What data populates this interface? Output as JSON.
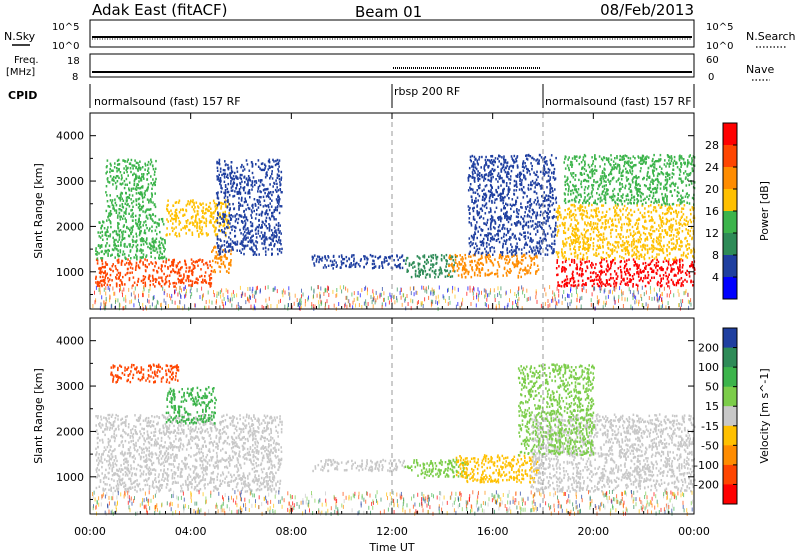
{
  "header": {
    "site": "Adak East (fitACF)",
    "beam": "Beam 01",
    "date": "08/Feb/2013"
  },
  "top_panels": {
    "nsky_label": "N.Sky",
    "nsearch_label": "N.Search",
    "left_ticks": [
      "10^5",
      "10^0"
    ],
    "right_ticks": [
      "10^5",
      "10^0"
    ],
    "freq_label_1": "Freq.",
    "freq_label_2": "[MHz]",
    "freq_ticks": [
      "18",
      "8"
    ],
    "nave_label": "Nave",
    "nave_ticks": [
      "60",
      "0"
    ],
    "cpid_label": "CPID",
    "cpid_segments": [
      {
        "label": "normalsound (fast) 157 RF",
        "start": 0,
        "end": 12
      },
      {
        "label": "rbsp 200 RF",
        "start": 12,
        "end": 18
      },
      {
        "label": "normalsound (fast) 157 RF",
        "start": 18,
        "end": 24
      }
    ]
  },
  "chart_data": [
    {
      "type": "heatmap",
      "name": "power-panel",
      "xlabel": "Time UT",
      "ylabel": "Slant Range [km]",
      "xlim": [
        0,
        24
      ],
      "ylim": [
        180,
        4500
      ],
      "x_ticks": [
        "00:00",
        "04:00",
        "08:00",
        "12:00",
        "16:00",
        "20:00",
        "00:00"
      ],
      "x_tick_values": [
        0,
        4,
        8,
        12,
        16,
        20,
        24
      ],
      "y_ticks": [
        1000,
        2000,
        3000,
        4000
      ],
      "colorbar": {
        "label": "Power [dB]",
        "ticks": [
          "28",
          "24",
          "20",
          "16",
          "12",
          "8",
          "4"
        ],
        "colors": [
          "#ff0000",
          "#ff4500",
          "#ff8c00",
          "#ffc000",
          "#3cb44b",
          "#2e8b57",
          "#1f3fa0",
          "#0000ff"
        ]
      },
      "regions": [
        {
          "x": [
            0.2,
            4.8
          ],
          "y": [
            700,
            1300
          ],
          "value": 26
        },
        {
          "x": [
            4.8,
            5.6
          ],
          "y": [
            1000,
            1600
          ],
          "value": 22
        },
        {
          "x": [
            0.2,
            3.0
          ],
          "y": [
            1300,
            2200
          ],
          "value": 14
        },
        {
          "x": [
            0.6,
            2.6
          ],
          "y": [
            2200,
            3500
          ],
          "value": 12
        },
        {
          "x": [
            3.0,
            5.5
          ],
          "y": [
            1800,
            2600
          ],
          "value": 18
        },
        {
          "x": [
            5.0,
            7.6
          ],
          "y": [
            1400,
            3500
          ],
          "value": 6
        },
        {
          "x": [
            8.8,
            12.5
          ],
          "y": [
            1100,
            1400
          ],
          "value": 5
        },
        {
          "x": [
            12.5,
            14.5
          ],
          "y": [
            900,
            1400
          ],
          "value": 10
        },
        {
          "x": [
            14.2,
            17.8
          ],
          "y": [
            900,
            1400
          ],
          "value": 22
        },
        {
          "x": [
            15.0,
            18.5
          ],
          "y": [
            1400,
            3600
          ],
          "value": 5
        },
        {
          "x": [
            18.5,
            24.0
          ],
          "y": [
            700,
            1300
          ],
          "value": 28
        },
        {
          "x": [
            18.5,
            24.0
          ],
          "y": [
            1300,
            2500
          ],
          "value": 16
        },
        {
          "x": [
            18.8,
            24.0
          ],
          "y": [
            2500,
            3600
          ],
          "value": 12
        }
      ]
    },
    {
      "type": "heatmap",
      "name": "velocity-panel",
      "xlabel": "Time UT",
      "ylabel": "Slant Range [km]",
      "xlim": [
        0,
        24
      ],
      "ylim": [
        180,
        4500
      ],
      "x_ticks": [
        "00:00",
        "04:00",
        "08:00",
        "12:00",
        "16:00",
        "20:00",
        "00:00"
      ],
      "x_tick_values": [
        0,
        4,
        8,
        12,
        16,
        20,
        24
      ],
      "y_ticks": [
        1000,
        2000,
        3000,
        4000
      ],
      "colorbar": {
        "label": "Velocity [m s^-1]",
        "ticks": [
          "200",
          "100",
          "50",
          "15",
          "-15",
          "-50",
          "-100",
          "-200"
        ],
        "colors": [
          "#1f3fa0",
          "#2e8b57",
          "#3cb44b",
          "#7ccd4a",
          "#c8c8c8",
          "#ffc000",
          "#ff8c00",
          "#ff4500",
          "#ff0000"
        ]
      },
      "regions": [
        {
          "x": [
            0.2,
            7.6
          ],
          "y": [
            700,
            2400
          ],
          "value": 0
        },
        {
          "x": [
            0.8,
            3.5
          ],
          "y": [
            3100,
            3500
          ],
          "value": -150
        },
        {
          "x": [
            3.0,
            5.0
          ],
          "y": [
            2200,
            3000
          ],
          "value": 80
        },
        {
          "x": [
            8.8,
            12.5
          ],
          "y": [
            1150,
            1400
          ],
          "value": 0
        },
        {
          "x": [
            12.5,
            15.0
          ],
          "y": [
            1000,
            1400
          ],
          "value": 20
        },
        {
          "x": [
            14.5,
            17.8
          ],
          "y": [
            900,
            1500
          ],
          "value": -30
        },
        {
          "x": [
            17.5,
            24.0
          ],
          "y": [
            700,
            2400
          ],
          "value": 0
        },
        {
          "x": [
            17.0,
            20.0
          ],
          "y": [
            1500,
            3500
          ],
          "value": 30
        }
      ]
    }
  ]
}
